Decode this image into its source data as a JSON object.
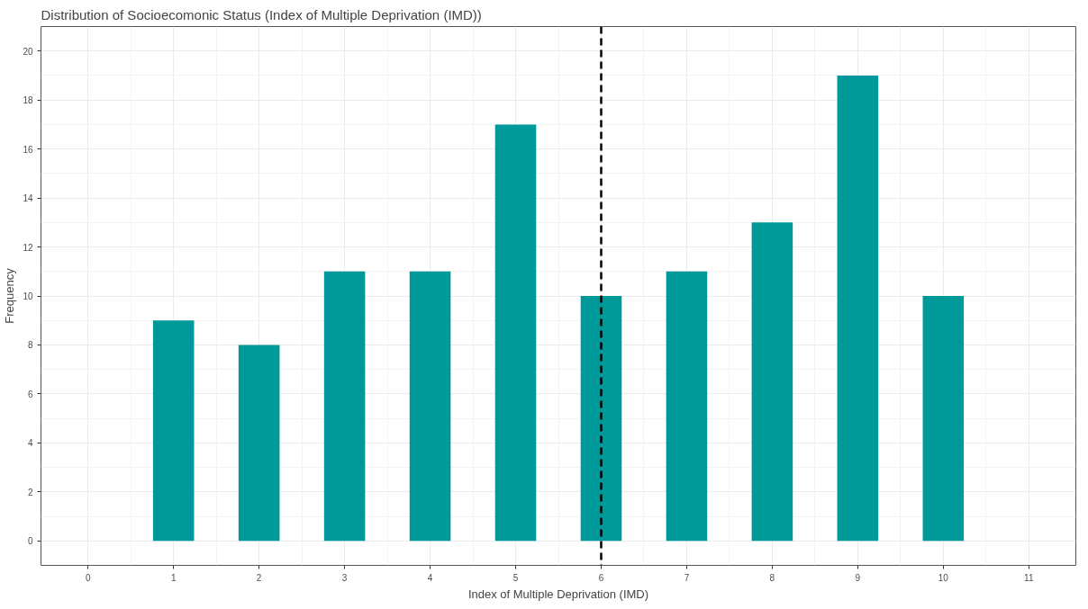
{
  "chart_data": {
    "type": "bar",
    "title": "Distribution of Socioecomonic Status (Index of Multiple Deprivation (IMD))",
    "xlabel": "Index of Multiple Deprivation (IMD)",
    "ylabel": "Frequency",
    "x": [
      1,
      2,
      3,
      4,
      5,
      6,
      7,
      8,
      9,
      10
    ],
    "values": [
      9,
      8,
      11,
      11,
      17,
      10,
      11,
      13,
      19,
      10
    ],
    "color": "#009999",
    "xlim": [
      -0.55,
      11.55
    ],
    "xticks": [
      0,
      1,
      2,
      3,
      4,
      5,
      6,
      7,
      8,
      9,
      10,
      11
    ],
    "ylim": [
      -1,
      21
    ],
    "yticks": [
      0,
      2,
      4,
      6,
      8,
      10,
      12,
      14,
      16,
      18,
      20
    ],
    "ref_lines": [
      {
        "axis": "x",
        "value": 6,
        "color": "#000000",
        "line_style": "dashed"
      }
    ],
    "grid": true
  }
}
